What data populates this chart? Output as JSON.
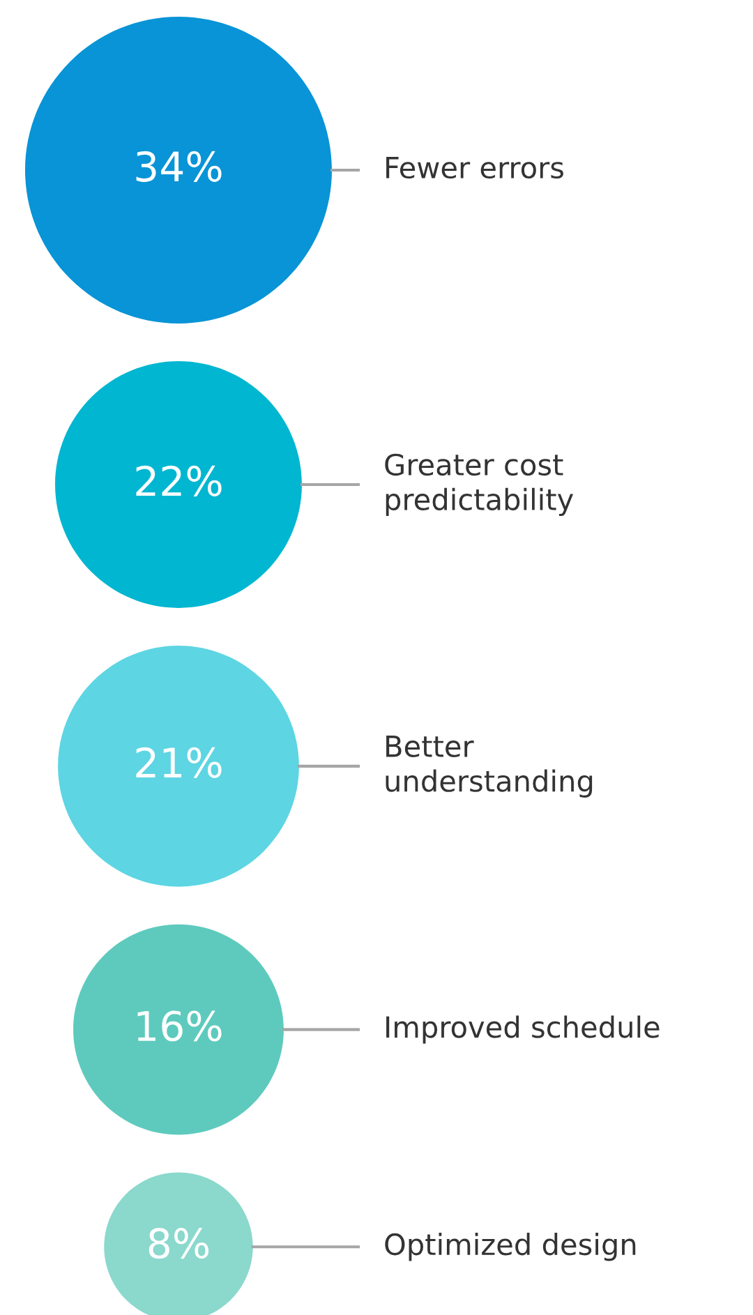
{
  "chart_data": {
    "type": "other",
    "categories": [
      "Fewer errors",
      "Greater cost\npredictability",
      "Better\nunderstanding",
      "Improved schedule",
      "Optimized design"
    ],
    "values": [
      34,
      22,
      21,
      16,
      8
    ],
    "colors": [
      "#0894d6",
      "#00b6d0",
      "#5dd5e3",
      "#5ecabd",
      "#8bd8cd"
    ],
    "value_labels": [
      "34%",
      "22%",
      "21%",
      "16%",
      "8%"
    ]
  }
}
